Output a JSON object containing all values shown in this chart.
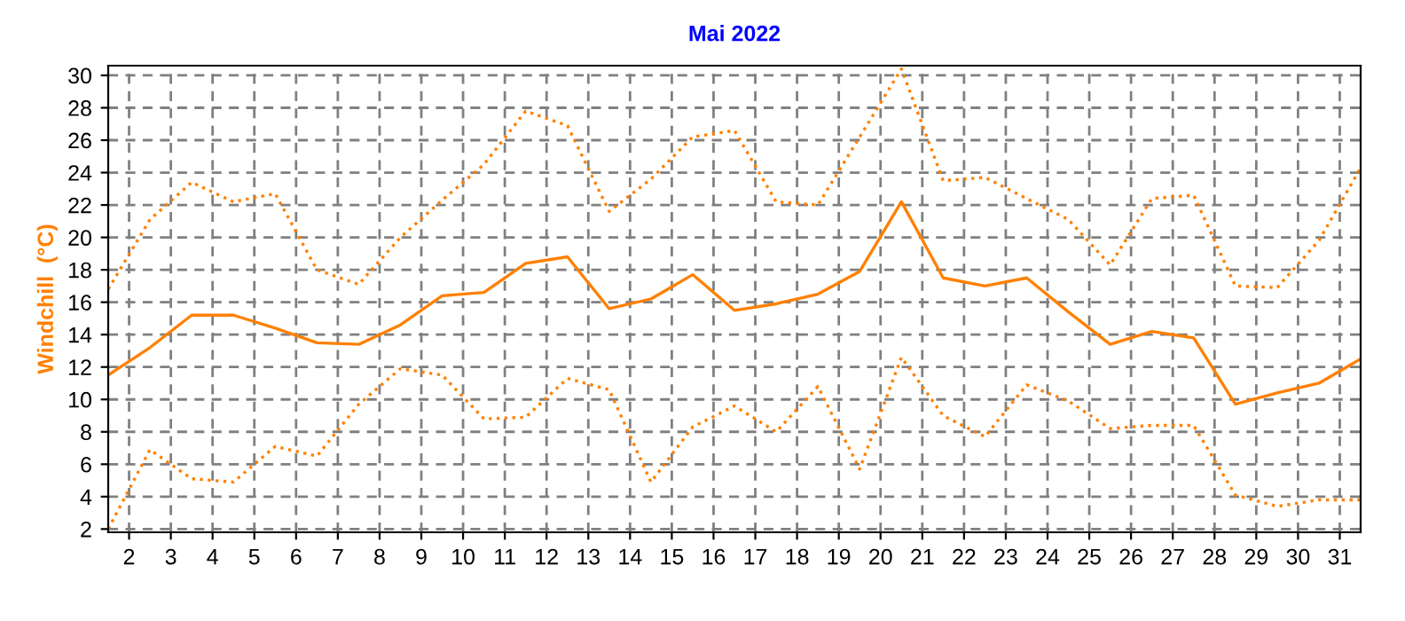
{
  "chart_data": {
    "type": "line",
    "title": "Mai 2022",
    "ylabel": "Windchill  (°C)",
    "x": [
      1.5,
      2.5,
      3.5,
      4.5,
      5.5,
      6.5,
      7.5,
      8.5,
      9.5,
      10.5,
      11.5,
      12.5,
      13.5,
      14.5,
      15.5,
      16.5,
      17.5,
      18.5,
      19.5,
      20.5,
      21.5,
      22.5,
      23.5,
      24.5,
      25.5,
      26.5,
      27.5,
      28.5,
      29.5,
      30.5,
      31.5
    ],
    "series": [
      {
        "color": "#ff8000",
        "line_style": "dotted",
        "values": [
          16.8,
          21.1,
          23.4,
          22.2,
          22.7,
          18.0,
          17.1,
          20.0,
          22.3,
          24.5,
          27.8,
          26.9,
          21.6,
          23.6,
          26.2,
          26.6,
          22.2,
          22.0,
          26.2,
          30.4,
          23.5,
          23.7,
          22.4,
          21.1,
          18.3,
          22.4,
          22.6,
          17.0,
          16.9,
          19.8,
          24.3
        ]
      },
      {
        "color": "#ff8000",
        "line_style": "solid",
        "values": [
          11.5,
          13.2,
          15.2,
          15.2,
          14.4,
          13.5,
          13.4,
          14.6,
          16.4,
          16.6,
          18.4,
          18.8,
          15.6,
          16.2,
          17.7,
          15.5,
          15.9,
          16.5,
          17.9,
          22.2,
          17.5,
          17.0,
          17.5,
          15.4,
          13.4,
          14.2,
          13.8,
          9.7,
          10.4,
          11.0,
          12.5
        ]
      },
      {
        "color": "#ff8000",
        "line_style": "dotted",
        "values": [
          2.0,
          6.9,
          5.1,
          4.9,
          7.1,
          6.5,
          9.7,
          11.9,
          11.5,
          8.8,
          8.9,
          11.3,
          10.6,
          4.9,
          8.3,
          9.6,
          8.0,
          10.8,
          5.7,
          12.6,
          9.0,
          7.7,
          10.9,
          9.9,
          8.2,
          8.4,
          8.4,
          4.1,
          3.4,
          3.8,
          3.8
        ]
      }
    ],
    "xlim": [
      1.5,
      31.5
    ],
    "xticks": [
      2,
      3,
      4,
      5,
      6,
      7,
      8,
      9,
      10,
      11,
      12,
      13,
      14,
      15,
      16,
      17,
      18,
      19,
      20,
      21,
      22,
      23,
      24,
      25,
      26,
      27,
      28,
      29,
      30,
      31
    ],
    "ylim": [
      1.8,
      30.6
    ],
    "yticks": [
      2,
      4,
      6,
      8,
      10,
      12,
      14,
      16,
      18,
      20,
      22,
      24,
      26,
      28,
      30
    ],
    "grid": true,
    "legend": false,
    "marker": "none"
  }
}
